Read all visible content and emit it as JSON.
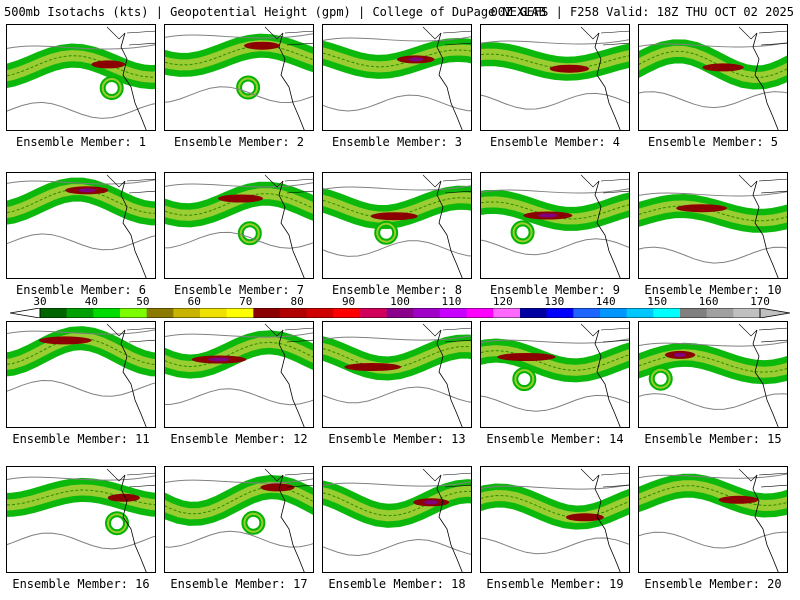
{
  "header": {
    "left": "500mb Isotachs (kts) | Geopotential Height (gpm) | College of DuPage NEXLAB",
    "right": "00Z GEFS | F258 Valid: 18Z THU OCT 02 2025"
  },
  "members": [
    {
      "caption": "Ensemble Member: 1"
    },
    {
      "caption": "Ensemble Member: 2"
    },
    {
      "caption": "Ensemble Member: 3"
    },
    {
      "caption": "Ensemble Member: 4"
    },
    {
      "caption": "Ensemble Member: 5"
    },
    {
      "caption": "Ensemble Member: 6"
    },
    {
      "caption": "Ensemble Member: 7"
    },
    {
      "caption": "Ensemble Member: 8"
    },
    {
      "caption": "Ensemble Member: 9"
    },
    {
      "caption": "Ensemble Member: 10"
    },
    {
      "caption": "Ensemble Member: 11"
    },
    {
      "caption": "Ensemble Member: 12"
    },
    {
      "caption": "Ensemble Member: 13"
    },
    {
      "caption": "Ensemble Member: 14"
    },
    {
      "caption": "Ensemble Member: 15"
    },
    {
      "caption": "Ensemble Member: 16"
    },
    {
      "caption": "Ensemble Member: 17"
    },
    {
      "caption": "Ensemble Member: 18"
    },
    {
      "caption": "Ensemble Member: 19"
    },
    {
      "caption": "Ensemble Member: 20"
    }
  ],
  "colorbar": {
    "labels": [
      "30",
      "40",
      "50",
      "60",
      "70",
      "80",
      "90",
      "100",
      "110",
      "120",
      "130",
      "140",
      "150",
      "160",
      "170"
    ],
    "colors": [
      "#006400",
      "#00a000",
      "#00dc00",
      "#7cfc00",
      "#8b7a00",
      "#c8b400",
      "#f0e000",
      "#ffff00",
      "#8b0000",
      "#b00000",
      "#d00000",
      "#ff0000",
      "#d0005a",
      "#8b008b",
      "#a000c8",
      "#c800ff",
      "#ff00ff",
      "#ff69ff",
      "#0000a0",
      "#0000ff",
      "#1e64ff",
      "#0096ff",
      "#00c8ff",
      "#00ffff",
      "#808080",
      "#a0a0a0",
      "#c0c0c0"
    ]
  },
  "colors": {
    "jet_outer": "#00b400",
    "jet_mid": "#9acd32",
    "jet_core": "#8b0000",
    "jet_max": "#800080",
    "height_contour": "#808080",
    "coastline": "#000000"
  }
}
